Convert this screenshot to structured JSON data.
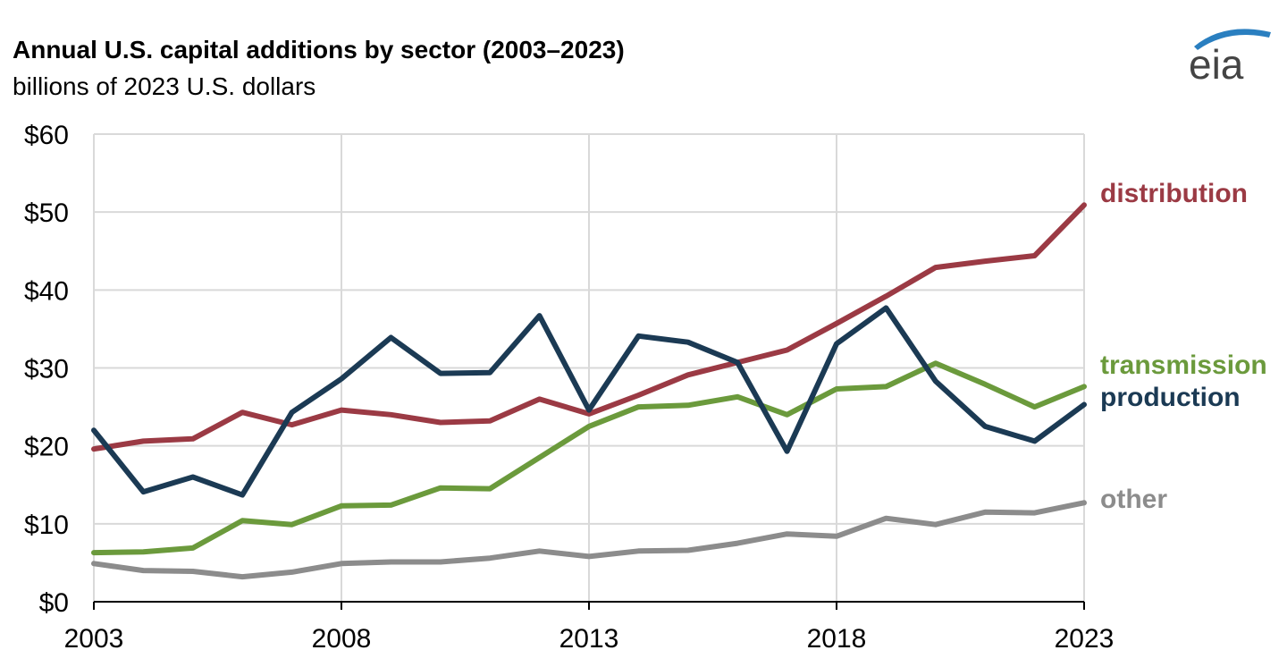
{
  "header": {
    "title": "Annual U.S. capital additions by sector (2003–2023)",
    "subtitle": "billions of 2023 U.S. dollars",
    "logo_text": "eia"
  },
  "chart_data": {
    "type": "line",
    "title": "Annual U.S. capital additions by sector (2003–2023)",
    "subtitle": "billions of 2023 U.S. dollars",
    "xlabel": "",
    "ylabel": "",
    "x": [
      2003,
      2004,
      2005,
      2006,
      2007,
      2008,
      2009,
      2010,
      2011,
      2012,
      2013,
      2014,
      2015,
      2016,
      2017,
      2018,
      2019,
      2020,
      2021,
      2022,
      2023
    ],
    "xlim": [
      2003,
      2023
    ],
    "ylim": [
      0,
      60
    ],
    "x_ticks": [
      2003,
      2008,
      2013,
      2018,
      2023
    ],
    "x_tick_labels": [
      "2003",
      "2008",
      "2013",
      "2018",
      "2023"
    ],
    "y_ticks": [
      0,
      10,
      20,
      30,
      40,
      50,
      60
    ],
    "y_tick_labels": [
      "$0",
      "$10",
      "$20",
      "$30",
      "$40",
      "$50",
      "$60"
    ],
    "grid": true,
    "legend": "direct labels at right end of lines",
    "series": [
      {
        "name": "distribution",
        "color": "#9b3a44",
        "values": [
          19.6,
          20.6,
          20.9,
          24.3,
          22.7,
          24.6,
          24.0,
          23.0,
          23.2,
          26.0,
          24.1,
          26.5,
          29.1,
          30.7,
          32.3,
          35.7,
          39.2,
          42.9,
          43.7,
          44.4,
          50.9
        ]
      },
      {
        "name": "transmission",
        "color": "#6b9a3c",
        "values": [
          6.3,
          6.4,
          6.9,
          10.4,
          9.9,
          12.3,
          12.4,
          14.6,
          14.5,
          18.5,
          22.5,
          25.0,
          25.2,
          26.3,
          24.0,
          27.3,
          27.6,
          30.6,
          27.9,
          25.0,
          27.6
        ]
      },
      {
        "name": "production",
        "color": "#1b3a54",
        "values": [
          22.0,
          14.1,
          16.0,
          13.7,
          24.3,
          28.6,
          33.9,
          29.3,
          29.4,
          36.7,
          24.6,
          34.1,
          33.3,
          30.7,
          19.3,
          33.1,
          37.7,
          28.3,
          22.5,
          20.6,
          25.3
        ]
      },
      {
        "name": "other",
        "color": "#8c8c8c",
        "values": [
          4.9,
          4.0,
          3.9,
          3.2,
          3.8,
          4.9,
          5.1,
          5.1,
          5.6,
          6.5,
          5.8,
          6.5,
          6.6,
          7.5,
          8.7,
          8.4,
          10.7,
          9.9,
          11.5,
          11.4,
          12.7
        ]
      }
    ]
  }
}
